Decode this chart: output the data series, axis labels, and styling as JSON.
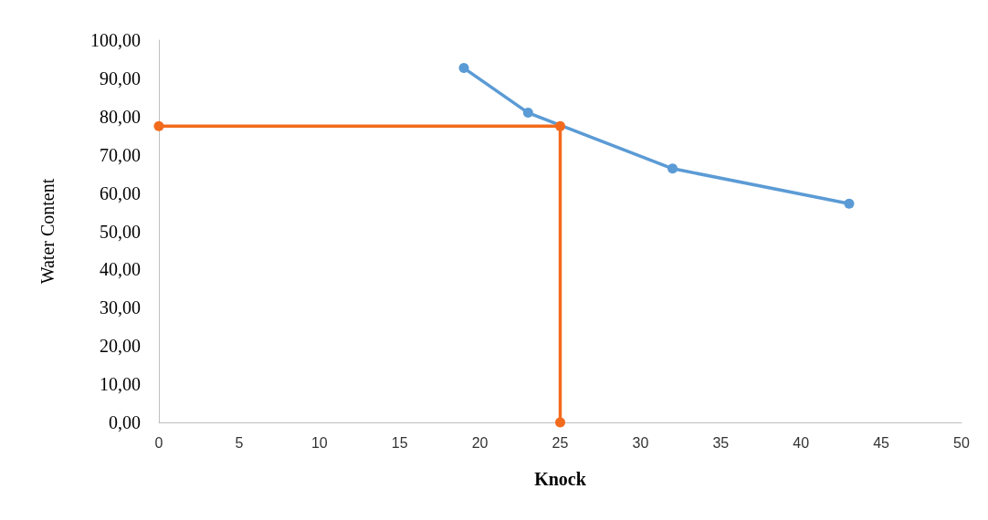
{
  "chart_data": {
    "type": "line",
    "xlabel": "Knock",
    "ylabel": "Water Content",
    "series": [
      {
        "color": "#5b9bd5",
        "x": [
          19,
          23,
          32,
          43
        ],
        "values": [
          92.7,
          81.0,
          66.4,
          57.2
        ]
      },
      {
        "color": "#f26b1d",
        "x": [
          0,
          25,
          25
        ],
        "values": [
          77.5,
          77.5,
          0
        ]
      }
    ],
    "xlim": [
      0,
      50
    ],
    "xticks": [
      0,
      5,
      10,
      15,
      20,
      25,
      30,
      35,
      40,
      45,
      50
    ],
    "ylim": [
      0,
      100
    ],
    "yticks": [
      {
        "value": 0,
        "label": "0,00"
      },
      {
        "value": 10,
        "label": "10,00"
      },
      {
        "value": 20,
        "label": "20,00"
      },
      {
        "value": 30,
        "label": "30,00"
      },
      {
        "value": 40,
        "label": "40,00"
      },
      {
        "value": 50,
        "label": "50,00"
      },
      {
        "value": 60,
        "label": "60,00"
      },
      {
        "value": 70,
        "label": "70,00"
      },
      {
        "value": 80,
        "label": "80,00"
      },
      {
        "value": 90,
        "label": "90,00"
      },
      {
        "value": 100,
        "label": "100,00"
      }
    ],
    "grid": false,
    "marker": "circle",
    "line_style": "solid"
  }
}
